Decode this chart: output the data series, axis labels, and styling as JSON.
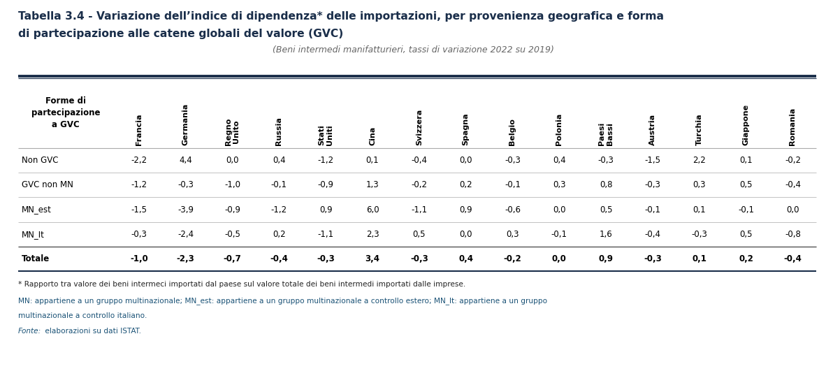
{
  "title_line1": "Tabella 3.4 - Variazione dell’indice di dipendenza* delle importazioni, per provenienza geografica e forma",
  "title_line2": "di partecipazione alle catene globali del valore (GVC)",
  "subtitle": "(Beni intermedi manifatturieri, tassi di variazione 2022 su 2019)",
  "col_header": "Forme di\npartecipazione\na GVC",
  "columns": [
    "Francia",
    "Germania",
    "Regno\nUnito",
    "Russia",
    "Stati\nUniti",
    "Cina",
    "Svizzera",
    "Spagna",
    "Belgio",
    "Polonia",
    "Paesi\nBassi",
    "Austria",
    "Turchia",
    "Giappone",
    "Romania"
  ],
  "rows": [
    {
      "label": "Non GVC",
      "bold": false,
      "values": [
        "-2,2",
        "4,4",
        "0,0",
        "0,4",
        "-1,2",
        "0,1",
        "-0,4",
        "0,0",
        "-0,3",
        "0,4",
        "-0,3",
        "-1,5",
        "2,2",
        "0,1",
        "-0,2"
      ]
    },
    {
      "label": "GVC non MN",
      "bold": false,
      "values": [
        "-1,2",
        "-0,3",
        "-1,0",
        "-0,1",
        "-0,9",
        "1,3",
        "-0,2",
        "0,2",
        "-0,1",
        "0,3",
        "0,8",
        "-0,3",
        "0,3",
        "0,5",
        "-0,4"
      ]
    },
    {
      "label": "MN_est",
      "bold": false,
      "values": [
        "-1,5",
        "-3,9",
        "-0,9",
        "-1,2",
        "0,9",
        "6,0",
        "-1,1",
        "0,9",
        "-0,6",
        "0,0",
        "0,5",
        "-0,1",
        "0,1",
        "-0,1",
        "0,0"
      ]
    },
    {
      "label": "MN_It",
      "bold": false,
      "values": [
        "-0,3",
        "-2,4",
        "-0,5",
        "0,2",
        "-1,1",
        "2,3",
        "0,5",
        "0,0",
        "0,3",
        "-0,1",
        "1,6",
        "-0,4",
        "-0,3",
        "0,5",
        "-0,8"
      ]
    },
    {
      "label": "Totale",
      "bold": true,
      "values": [
        "-1,0",
        "-2,3",
        "-0,7",
        "-0,4",
        "-0,3",
        "3,4",
        "-0,3",
        "0,4",
        "-0,2",
        "0,0",
        "0,9",
        "-0,3",
        "0,1",
        "0,2",
        "-0,4"
      ]
    }
  ],
  "footnote1": "* Rapporto tra valore dei beni intermeci importati dal paese sul valore totale dei beni intermedi importati dalle imprese.",
  "footnote2": "MN: appartiene a un gruppo multinazionale; MN_est: appartiene a un gruppo multinazionale a controllo estero; MN_It: appartiene a un gruppo",
  "footnote3": "multinazionale a controllo italiano.",
  "footnote4_italic": "Fonte:",
  "footnote4_rest": " elaborazioni su dati ISTAT.",
  "title_color": "#1a2e4a",
  "subtitle_color": "#666666",
  "top_rule_color": "#1a2e4a",
  "thin_rule_color": "#1a2e4a",
  "row_rule_color": "#aaaaaa",
  "total_rule_color": "#555555",
  "footnote_black": "#222222",
  "footnote_blue": "#1a5276"
}
